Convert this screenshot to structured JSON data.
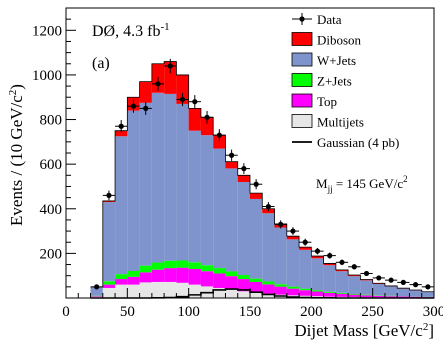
{
  "chart_data": {
    "type": "bar",
    "stacked": true,
    "ylabel_main": "Events / (10 GeV/c",
    "ylabel_sup": "2",
    "ylabel_tail": ")",
    "xlabel_main": "Dijet Mass [GeV/c",
    "xlabel_sup": "2",
    "xlabel_tail": "]",
    "annotation_main": "DØ, 4.3 fb",
    "annotation_sup": "-1",
    "panel_label": "(a)",
    "xlim": [
      0,
      300
    ],
    "ylim": [
      0,
      1300
    ],
    "x_ticks": [
      "0",
      "50",
      "100",
      "150",
      "200",
      "250",
      "300"
    ],
    "y_ticks": [
      "200",
      "400",
      "600",
      "800",
      "1000",
      "1200"
    ],
    "bin_edges": [
      20,
      30,
      40,
      50,
      60,
      70,
      80,
      90,
      100,
      110,
      120,
      130,
      140,
      150,
      160,
      170,
      180,
      190,
      200,
      210,
      220,
      230,
      240,
      250,
      260,
      270,
      280,
      290,
      300
    ],
    "series": [
      {
        "name": "Multijets",
        "color": "#e6e6e6",
        "values": [
          5,
          45,
          60,
          60,
          70,
          72,
          72,
          68,
          60,
          52,
          45,
          38,
          30,
          24,
          19,
          15,
          12,
          10,
          8,
          6,
          5,
          4,
          3,
          3,
          2,
          2,
          2,
          1
        ]
      },
      {
        "name": "Top",
        "color": "#ff00ff",
        "values": [
          3,
          15,
          25,
          35,
          45,
          55,
          62,
          68,
          70,
          68,
          65,
          60,
          55,
          48,
          42,
          36,
          30,
          25,
          21,
          17,
          14,
          11,
          9,
          7,
          6,
          5,
          4,
          3
        ]
      },
      {
        "name": "Z+Jets",
        "color": "#00ff00",
        "values": [
          2,
          15,
          22,
          26,
          30,
          32,
          33,
          32,
          30,
          27,
          24,
          21,
          18,
          15,
          13,
          11,
          9,
          7,
          6,
          5,
          4,
          3,
          3,
          2,
          2,
          1,
          1,
          1
        ]
      },
      {
        "name": "W+Jets",
        "color": "#7f94cc",
        "values": [
          40,
          355,
          618,
          719,
          730,
          761,
          748,
          702,
          590,
          583,
          536,
          462,
          417,
          357,
          306,
          254,
          212,
          174,
          143,
          119,
          97,
          80,
          64,
          51,
          42,
          34,
          27,
          22
        ]
      },
      {
        "name": "Diboson",
        "color": "#ff0000",
        "values": [
          0,
          5,
          25,
          60,
          95,
          130,
          145,
          130,
          100,
          80,
          60,
          30,
          30,
          26,
          20,
          16,
          14,
          12,
          10,
          8,
          6,
          5,
          4,
          3,
          2,
          2,
          2,
          1
        ]
      }
    ],
    "data_points": {
      "name": "Data",
      "x": [
        25,
        35,
        45,
        55,
        65,
        75,
        85,
        95,
        105,
        115,
        125,
        135,
        145,
        155,
        165,
        175,
        185,
        195,
        205,
        215,
        225,
        235,
        245,
        255,
        265,
        275,
        285,
        295
      ],
      "y": [
        50,
        460,
        770,
        860,
        850,
        960,
        1040,
        890,
        880,
        810,
        730,
        640,
        580,
        510,
        410,
        330,
        300,
        250,
        210,
        190,
        160,
        140,
        110,
        90,
        80,
        70,
        60,
        50
      ]
    },
    "gaussian": {
      "name": "Gaussian (4 pb)",
      "x": [
        20,
        30,
        40,
        50,
        60,
        70,
        80,
        90,
        100,
        110,
        120,
        130,
        140,
        150,
        160,
        170,
        180,
        190,
        200,
        220,
        240,
        260,
        280,
        300
      ],
      "y": [
        0,
        0,
        0,
        0,
        0,
        1,
        2,
        6,
        14,
        24,
        36,
        40,
        36,
        26,
        16,
        9,
        4,
        2,
        1,
        0,
        0,
        0,
        0,
        0
      ]
    },
    "legend": {
      "placement": "top-right",
      "items": [
        {
          "label": "Data",
          "kind": "point",
          "color": "#000000"
        },
        {
          "label": "Diboson",
          "kind": "box",
          "color": "#ff0000"
        },
        {
          "label": "W+Jets",
          "kind": "box",
          "color": "#7f94cc"
        },
        {
          "label": "Z+Jets",
          "kind": "box",
          "color": "#00ff00"
        },
        {
          "label": "Top",
          "kind": "box",
          "color": "#ff00ff"
        },
        {
          "label": "Multijets",
          "kind": "box",
          "color": "#e6e6e6"
        },
        {
          "label": "Gaussian (4 pb)",
          "kind": "line",
          "color": "#000000"
        }
      ],
      "mass_label": "M",
      "mass_sub": "jj",
      "mass_value": " = 145 GeV/c",
      "mass_sup": "2"
    }
  }
}
